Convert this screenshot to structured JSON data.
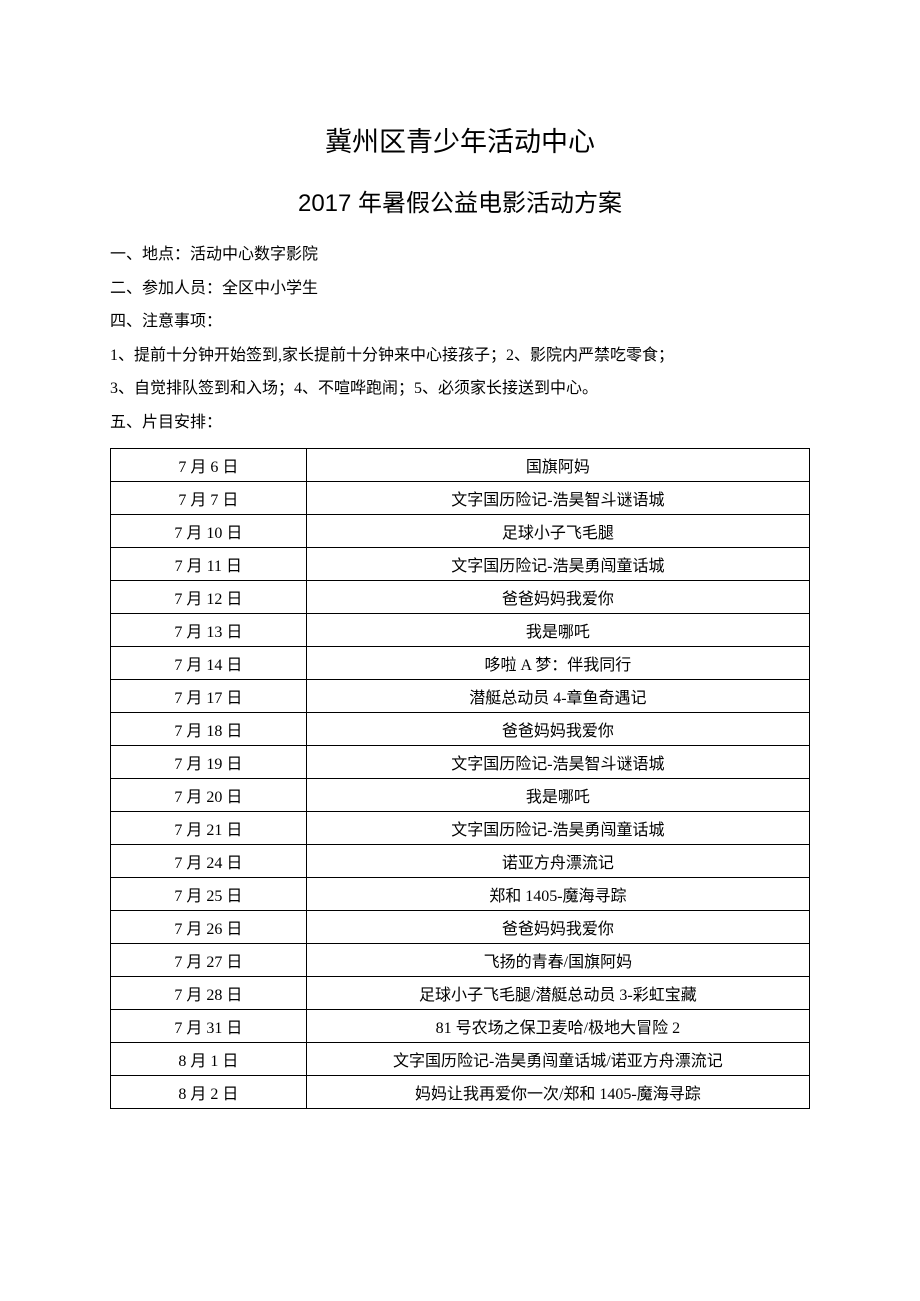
{
  "title_main": "冀州区青少年活动中心",
  "title_sub": "2017 年暑假公益电影活动方案",
  "line_location": "一、地点：活动中心数字影院",
  "line_participants": "二、参加人员：全区中小学生",
  "line_notes_header": "四、注意事项：",
  "line_notes_1": "1、提前十分钟开始签到,家长提前十分钟来中心接孩子；2、影院内严禁吃零食；",
  "line_notes_2": "3、自觉排队签到和入场；4、不喧哗跑闹；5、必须家长接送到中心。",
  "line_schedule_header": "五、片目安排：",
  "schedule": {
    "rows": [
      {
        "date": "7 月 6 日",
        "movie": "国旗阿妈"
      },
      {
        "date": "7 月 7 日",
        "movie": "文字国历险记-浩昊智斗谜语城"
      },
      {
        "date": "7 月 10 日",
        "movie": "足球小子飞毛腿"
      },
      {
        "date": "7 月 11 日",
        "movie": "文字国历险记-浩昊勇闯童话城"
      },
      {
        "date": "7 月 12 日",
        "movie": "爸爸妈妈我爱你"
      },
      {
        "date": "7 月 13 日",
        "movie": "我是哪吒"
      },
      {
        "date": "7 月 14 日",
        "movie": "哆啦 A 梦：伴我同行"
      },
      {
        "date": "7 月 17 日",
        "movie": "潜艇总动员 4-章鱼奇遇记"
      },
      {
        "date": "7 月 18 日",
        "movie": "爸爸妈妈我爱你"
      },
      {
        "date": "7 月 19 日",
        "movie": "文字国历险记-浩昊智斗谜语城"
      },
      {
        "date": "7 月 20 日",
        "movie": "我是哪吒"
      },
      {
        "date": "7 月 21 日",
        "movie": "文字国历险记-浩昊勇闯童话城"
      },
      {
        "date": "7 月 24 日",
        "movie": "诺亚方舟漂流记"
      },
      {
        "date": "7 月 25 日",
        "movie": "郑和 1405-魔海寻踪"
      },
      {
        "date": "7 月 26 日",
        "movie": "爸爸妈妈我爱你"
      },
      {
        "date": "7 月 27 日",
        "movie": "飞扬的青春/国旗阿妈"
      },
      {
        "date": "7 月 28 日",
        "movie": "足球小子飞毛腿/潜艇总动员 3-彩虹宝藏"
      },
      {
        "date": "7 月 31 日",
        "movie": "81 号农场之保卫麦哈/极地大冒险 2"
      },
      {
        "date": "8 月 1 日",
        "movie": "文字国历险记-浩昊勇闯童话城/诺亚方舟漂流记"
      },
      {
        "date": "8 月 2 日",
        "movie": "妈妈让我再爱你一次/郑和 1405-魔海寻踪"
      }
    ]
  },
  "colors": {
    "text": "#000000",
    "background": "#ffffff",
    "border": "#000000"
  }
}
